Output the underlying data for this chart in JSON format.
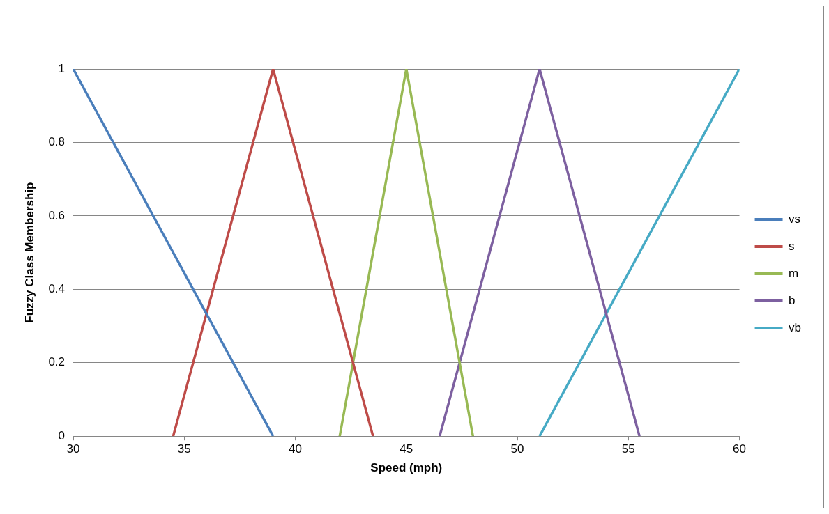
{
  "chart_data": {
    "type": "line",
    "xlabel": "Speed (mph)",
    "ylabel": "Fuzzy Class Membership",
    "xlim": [
      30,
      60
    ],
    "xticks": [
      30,
      35,
      40,
      45,
      50,
      55,
      60
    ],
    "ylim": [
      0,
      1
    ],
    "yticks": [
      0,
      0.2,
      0.4,
      0.6,
      0.8,
      1
    ],
    "grid": "y",
    "legend": "right",
    "marker": "none",
    "line_style": "solid",
    "series": [
      {
        "name": "vs",
        "color": "#4a7ebb",
        "x": [
          30,
          39
        ],
        "values": [
          1,
          0
        ]
      },
      {
        "name": "s",
        "color": "#be4b48",
        "x": [
          34.5,
          39,
          43.5
        ],
        "values": [
          0,
          1,
          0
        ]
      },
      {
        "name": "m",
        "color": "#98b954",
        "x": [
          42,
          45,
          48
        ],
        "values": [
          0,
          1,
          0
        ]
      },
      {
        "name": "b",
        "color": "#7d60a0",
        "x": [
          46.5,
          51,
          55.5
        ],
        "values": [
          0,
          1,
          0
        ]
      },
      {
        "name": "vb",
        "color": "#46aac5",
        "x": [
          51,
          60
        ],
        "values": [
          0,
          1
        ]
      }
    ]
  }
}
